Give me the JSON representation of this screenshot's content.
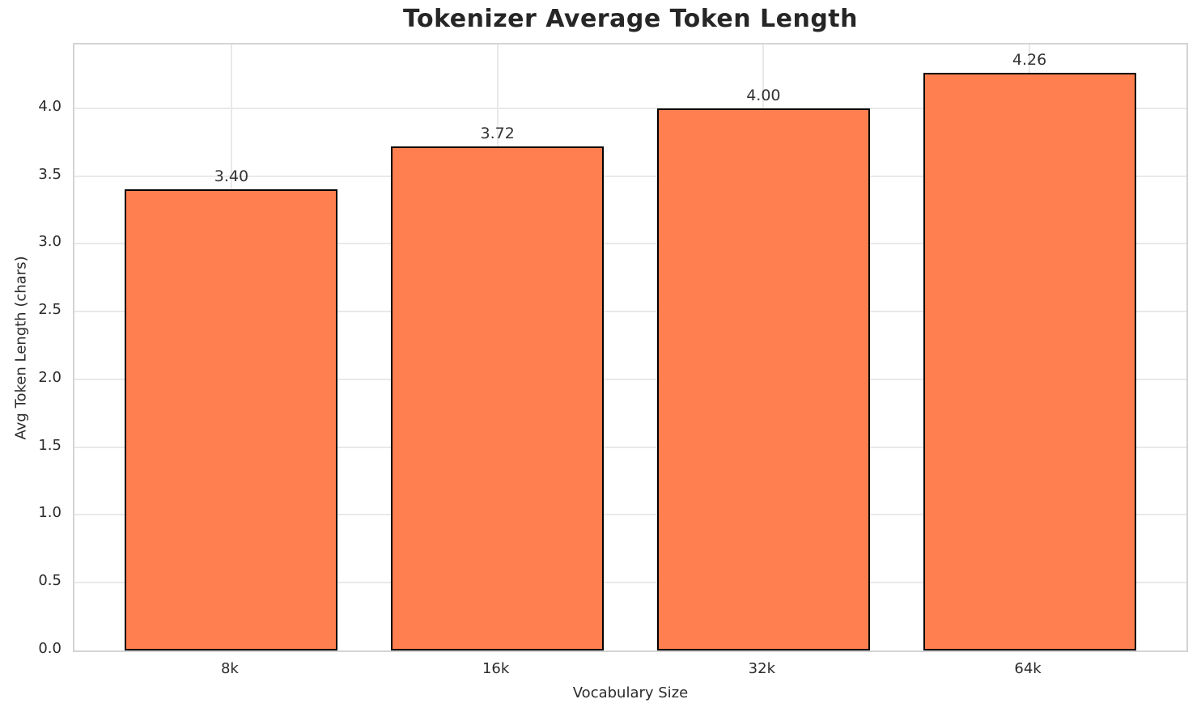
{
  "chart_data": {
    "type": "bar",
    "title": "Tokenizer Average Token Length",
    "xlabel": "Vocabulary Size",
    "ylabel": "Avg Token Length (chars)",
    "categories": [
      "8k",
      "16k",
      "32k",
      "64k"
    ],
    "values": [
      3.4,
      3.72,
      4.0,
      4.26
    ],
    "value_labels": [
      "3.40",
      "3.72",
      "4.00",
      "4.26"
    ],
    "yticks": [
      0.0,
      0.5,
      1.0,
      1.5,
      2.0,
      2.5,
      3.0,
      3.5,
      4.0
    ],
    "ytick_labels": [
      "0.0",
      "0.5",
      "1.0",
      "1.5",
      "2.0",
      "2.5",
      "3.0",
      "3.5",
      "4.0"
    ],
    "ylim": [
      0,
      4.47
    ],
    "bar_width_fraction": 0.8,
    "grid": true,
    "legend": "none",
    "colors": {
      "bar_fill": "#FF7F50",
      "bar_edge": "#000000",
      "gridline": "#e9e9e9",
      "plot_border": "#d4d4d4",
      "title_text": "#262626",
      "tick_text": "#2b2b2b",
      "value_label_text": "#333333",
      "background": "#ffffff"
    }
  }
}
